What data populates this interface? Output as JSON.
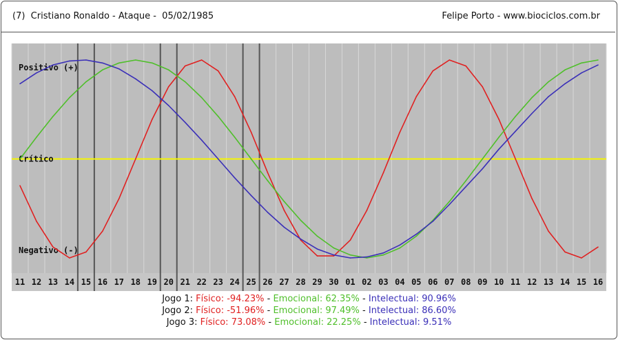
{
  "header": {
    "title": "(7)  Cristiano Ronaldo - Ataque -  05/02/1985",
    "author": "Felipe Porto - www.biociclos.com.br"
  },
  "chart_data": {
    "type": "line",
    "x": [
      "11",
      "12",
      "13",
      "14",
      "15",
      "16",
      "17",
      "18",
      "19",
      "20",
      "21",
      "22",
      "23",
      "24",
      "25",
      "26",
      "27",
      "28",
      "29",
      "30",
      "01",
      "02",
      "03",
      "04",
      "05",
      "06",
      "07",
      "08",
      "09",
      "10",
      "11",
      "12",
      "13",
      "14",
      "15",
      "16"
    ],
    "ylim": [
      -100,
      100
    ],
    "reference_labels": {
      "positive": "Positivo (+)",
      "critical": "Crítico",
      "negative": "Negativo (-)"
    },
    "highlighted_days": [
      "15",
      "16",
      "20",
      "21",
      "25",
      "26"
    ],
    "series": [
      {
        "name": "Físico",
        "color": "#e02020",
        "values": [
          -27,
          -63,
          -89,
          -100,
          -94,
          -73,
          -40,
          0,
          40,
          73,
          94,
          100,
          89,
          63,
          27,
          -14,
          -52,
          -82,
          -98,
          -98,
          -82,
          -52,
          -14,
          27,
          63,
          89,
          100,
          94,
          73,
          40,
          0,
          -40,
          -73,
          -94,
          -100,
          -89
        ]
      },
      {
        "name": "Emocional",
        "color": "#4fbf2a",
        "values": [
          0,
          22,
          43,
          62,
          78,
          90,
          97,
          100,
          97,
          90,
          78,
          62,
          43,
          22,
          0,
          -22,
          -43,
          -62,
          -78,
          -90,
          -97,
          -100,
          -97,
          -90,
          -78,
          -62,
          -43,
          -22,
          0,
          22,
          43,
          62,
          78,
          90,
          97,
          100
        ]
      },
      {
        "name": "Intelectual",
        "color": "#3a2fb8",
        "values": [
          76,
          87,
          95,
          99,
          100,
          97,
          91,
          81,
          69,
          54,
          37,
          19,
          0,
          -19,
          -37,
          -54,
          -69,
          -81,
          -91,
          -97,
          -100,
          -99,
          -95,
          -87,
          -76,
          -63,
          -46,
          -28,
          -10,
          10,
          28,
          46,
          63,
          76,
          87,
          95
        ]
      }
    ]
  },
  "legend_lines": [
    {
      "prefix": "Jogo 1: ",
      "phy": "Físico: -94.23%",
      "sep1": " - ",
      "emo": "Emocional: 62.35%",
      "sep2": " - ",
      "int": "Intelectual: 90.96%"
    },
    {
      "prefix": "Jogo 2: ",
      "phy": "Físico: -51.96%",
      "sep1": " - ",
      "emo": "Emocional: 97.49%",
      "sep2": " - ",
      "int": "Intelectual: 86.60%"
    },
    {
      "prefix": "Jogo 3: ",
      "phy": "Físico: 73.08%",
      "sep1": " - ",
      "emo": "Emocional: 22.25%",
      "sep2": " - ",
      "int": "Intelectual: 9.51%"
    }
  ]
}
